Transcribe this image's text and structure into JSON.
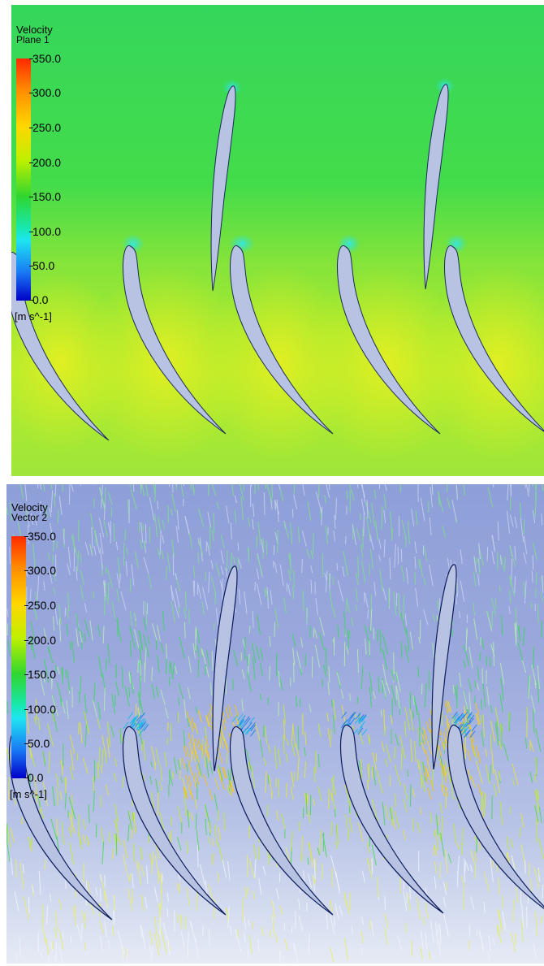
{
  "panels": [
    {
      "id": "contour",
      "legend_title": "Velocity",
      "legend_subtitle": "Plane 1",
      "units": "[m s^-1]",
      "ticks": [
        "350.0",
        "300.0",
        "250.0",
        "200.0",
        "150.0",
        "100.0",
        "50.0",
        "0.0"
      ],
      "range": [
        0,
        350
      ]
    },
    {
      "id": "vector",
      "legend_title": "Velocity",
      "legend_subtitle": "Vector 2",
      "units": "[m s^-1]",
      "ticks": [
        "350.0",
        "300.0",
        "250.0",
        "200.0",
        "150.0",
        "100.0",
        "50.0",
        "0.0"
      ],
      "range": [
        0,
        350
      ]
    }
  ],
  "colors": {
    "blade_fill": "#b8c2e2",
    "free_stream_top": "#34d65a",
    "downstream": "#b6ec2c",
    "vector_background": "#8fa0d8"
  }
}
